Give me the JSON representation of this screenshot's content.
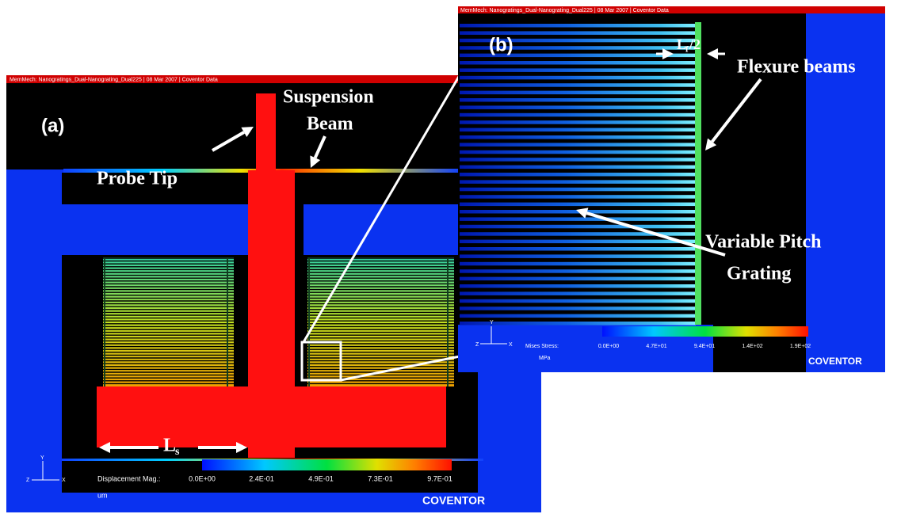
{
  "panel_a": {
    "header": "MemMech: Nanogratings_Dual-Nanograting_Dual225  |  08 Mar 2007  |  Coventor Data",
    "label": "(a)",
    "annotations": {
      "suspension": "Suspension",
      "beam": "Beam",
      "probe_tip": "Probe Tip",
      "ls_main": "L",
      "ls_sub": "s"
    },
    "axis_triad": [
      "Y",
      "Z",
      "X"
    ],
    "colorbar": {
      "title": "Displacement Mag.:",
      "ticks": [
        "0.0E+00",
        "2.4E-01",
        "4.9E-01",
        "7.3E-01",
        "9.7E-01"
      ],
      "unit": "um"
    },
    "brand": "COVENTOR"
  },
  "panel_b": {
    "header": "MemMech: Nanogratings_Dual-Nanograting_Dual225  |  08 Mar 2007  |  Coventor Data",
    "label": "(b)",
    "annotations": {
      "flexure": "Flexure beams",
      "variable_pitch": "Variable Pitch",
      "grating": "Grating",
      "lf_main": "L",
      "lf_sub": "f",
      "lf_tail": "/2"
    },
    "axis_triad": [
      "Y",
      "Z",
      "X"
    ],
    "colorbar": {
      "title": "Mises Stress:",
      "ticks": [
        "0.0E+00",
        "4.7E+01",
        "9.4E+01",
        "1.4E+02",
        "1.9E+02"
      ],
      "unit": "MPa"
    },
    "brand": "COVENTOR"
  }
}
